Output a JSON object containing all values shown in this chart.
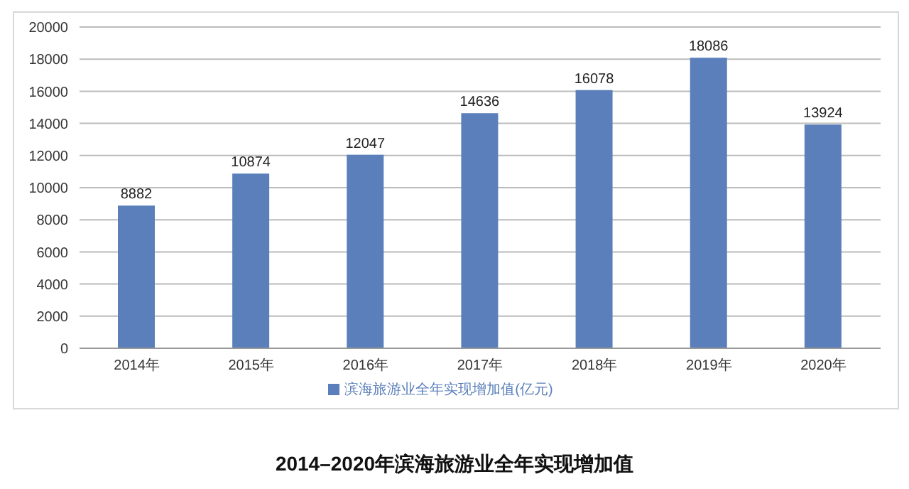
{
  "chart_data": {
    "type": "bar",
    "title": "2014–2020年滨海旅游业全年实现增加值",
    "categories": [
      "2014年",
      "2015年",
      "2016年",
      "2017年",
      "2018年",
      "2019年",
      "2020年"
    ],
    "series": [
      {
        "name": "滨海旅游业全年实现增加值(亿元)",
        "color": "#5a7fba",
        "values": [
          8882,
          10874,
          12047,
          14636,
          16078,
          18086,
          13924
        ]
      }
    ],
    "ylim": [
      0,
      20000
    ],
    "yticks": [
      0,
      2000,
      4000,
      6000,
      8000,
      10000,
      12000,
      14000,
      16000,
      18000,
      20000
    ],
    "grid": "y",
    "legend": "bottom",
    "data_labels": true
  }
}
